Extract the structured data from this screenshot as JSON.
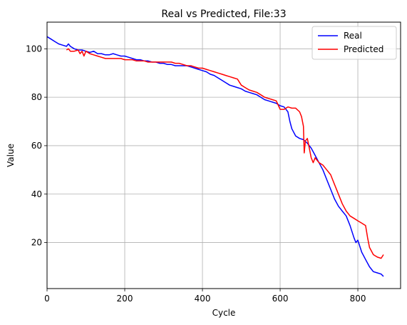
{
  "chart_data": {
    "type": "line",
    "title": "Real vs Predicted, File:33",
    "xlabel": "Cycle",
    "ylabel": "Value",
    "xlim": [
      0,
      910
    ],
    "ylim": [
      1,
      111
    ],
    "xticks": [
      0,
      200,
      400,
      600,
      800
    ],
    "yticks": [
      20,
      40,
      60,
      80,
      100
    ],
    "grid": true,
    "legend_position": "top-right",
    "series": [
      {
        "name": "Real",
        "color": "#0000ff",
        "points": [
          [
            0,
            105
          ],
          [
            10,
            104
          ],
          [
            20,
            103
          ],
          [
            30,
            102
          ],
          [
            40,
            101.5
          ],
          [
            50,
            101
          ],
          [
            55,
            102
          ],
          [
            60,
            101
          ],
          [
            70,
            100
          ],
          [
            80,
            99.5
          ],
          [
            90,
            99.5
          ],
          [
            100,
            99
          ],
          [
            110,
            98.5
          ],
          [
            120,
            99
          ],
          [
            130,
            98
          ],
          [
            140,
            98
          ],
          [
            150,
            97.5
          ],
          [
            160,
            97.5
          ],
          [
            170,
            98
          ],
          [
            180,
            97.5
          ],
          [
            190,
            97
          ],
          [
            200,
            97
          ],
          [
            210,
            96.5
          ],
          [
            220,
            96
          ],
          [
            230,
            95.5
          ],
          [
            240,
            95.5
          ],
          [
            250,
            95
          ],
          [
            260,
            95
          ],
          [
            270,
            94.5
          ],
          [
            280,
            94.5
          ],
          [
            290,
            94
          ],
          [
            300,
            94
          ],
          [
            310,
            93.5
          ],
          [
            320,
            93.5
          ],
          [
            330,
            93
          ],
          [
            340,
            93
          ],
          [
            350,
            93
          ],
          [
            360,
            93
          ],
          [
            370,
            92.5
          ],
          [
            380,
            92
          ],
          [
            390,
            91.5
          ],
          [
            400,
            91
          ],
          [
            410,
            90.5
          ],
          [
            420,
            89.5
          ],
          [
            430,
            89
          ],
          [
            440,
            88
          ],
          [
            450,
            87
          ],
          [
            460,
            86
          ],
          [
            470,
            85
          ],
          [
            480,
            84.5
          ],
          [
            490,
            84
          ],
          [
            500,
            83.5
          ],
          [
            510,
            82.5
          ],
          [
            520,
            82
          ],
          [
            530,
            81.5
          ],
          [
            540,
            81
          ],
          [
            550,
            80
          ],
          [
            560,
            79
          ],
          [
            570,
            78.5
          ],
          [
            580,
            78
          ],
          [
            590,
            77.5
          ],
          [
            600,
            76.5
          ],
          [
            610,
            76
          ],
          [
            620,
            74
          ],
          [
            625,
            70
          ],
          [
            630,
            67
          ],
          [
            640,
            64
          ],
          [
            650,
            63
          ],
          [
            660,
            62.5
          ],
          [
            670,
            61
          ],
          [
            680,
            59
          ],
          [
            690,
            56
          ],
          [
            700,
            53
          ],
          [
            710,
            50
          ],
          [
            720,
            46
          ],
          [
            730,
            42
          ],
          [
            740,
            38
          ],
          [
            750,
            35
          ],
          [
            760,
            33
          ],
          [
            770,
            31
          ],
          [
            780,
            27
          ],
          [
            790,
            22
          ],
          [
            795,
            20
          ],
          [
            800,
            21
          ],
          [
            810,
            16
          ],
          [
            820,
            13
          ],
          [
            830,
            10
          ],
          [
            840,
            8
          ],
          [
            850,
            7.5
          ],
          [
            860,
            7
          ],
          [
            866,
            6
          ]
        ]
      },
      {
        "name": "Predicted",
        "color": "#ff0000",
        "points": [
          [
            50,
            99.5
          ],
          [
            55,
            100
          ],
          [
            60,
            99
          ],
          [
            70,
            99
          ],
          [
            80,
            99.5
          ],
          [
            85,
            98
          ],
          [
            90,
            99
          ],
          [
            95,
            97
          ],
          [
            100,
            99
          ],
          [
            110,
            98
          ],
          [
            120,
            97.5
          ],
          [
            130,
            97
          ],
          [
            140,
            96.5
          ],
          [
            150,
            96
          ],
          [
            160,
            96
          ],
          [
            170,
            96
          ],
          [
            180,
            96
          ],
          [
            190,
            96
          ],
          [
            200,
            95.5
          ],
          [
            210,
            95.5
          ],
          [
            220,
            95.5
          ],
          [
            230,
            95
          ],
          [
            240,
            95
          ],
          [
            250,
            95
          ],
          [
            260,
            94.5
          ],
          [
            270,
            94.5
          ],
          [
            280,
            94.5
          ],
          [
            290,
            94.5
          ],
          [
            300,
            94.5
          ],
          [
            310,
            94.5
          ],
          [
            320,
            94.5
          ],
          [
            330,
            94
          ],
          [
            340,
            94
          ],
          [
            350,
            93.5
          ],
          [
            360,
            93
          ],
          [
            370,
            93
          ],
          [
            380,
            92.5
          ],
          [
            390,
            92
          ],
          [
            400,
            92
          ],
          [
            410,
            91.5
          ],
          [
            420,
            91
          ],
          [
            430,
            90.5
          ],
          [
            440,
            90
          ],
          [
            450,
            89.5
          ],
          [
            460,
            89
          ],
          [
            470,
            88.5
          ],
          [
            480,
            88
          ],
          [
            490,
            87.5
          ],
          [
            500,
            85
          ],
          [
            510,
            84
          ],
          [
            520,
            83
          ],
          [
            530,
            82.5
          ],
          [
            540,
            82
          ],
          [
            550,
            81
          ],
          [
            560,
            80
          ],
          [
            570,
            79.5
          ],
          [
            580,
            79
          ],
          [
            590,
            78.5
          ],
          [
            600,
            75
          ],
          [
            610,
            75
          ],
          [
            620,
            76
          ],
          [
            630,
            75.5
          ],
          [
            640,
            75.5
          ],
          [
            650,
            74
          ],
          [
            655,
            72
          ],
          [
            660,
            68
          ],
          [
            662,
            57
          ],
          [
            665,
            62
          ],
          [
            670,
            63
          ],
          [
            675,
            59
          ],
          [
            680,
            55
          ],
          [
            685,
            53
          ],
          [
            690,
            55
          ],
          [
            700,
            53
          ],
          [
            710,
            52
          ],
          [
            720,
            50
          ],
          [
            730,
            48
          ],
          [
            740,
            44
          ],
          [
            750,
            40
          ],
          [
            760,
            36
          ],
          [
            770,
            33
          ],
          [
            780,
            31
          ],
          [
            790,
            30
          ],
          [
            800,
            29
          ],
          [
            810,
            28
          ],
          [
            820,
            27
          ],
          [
            825,
            22
          ],
          [
            830,
            18
          ],
          [
            840,
            15
          ],
          [
            850,
            14
          ],
          [
            860,
            13.5
          ],
          [
            866,
            15
          ]
        ]
      }
    ]
  }
}
